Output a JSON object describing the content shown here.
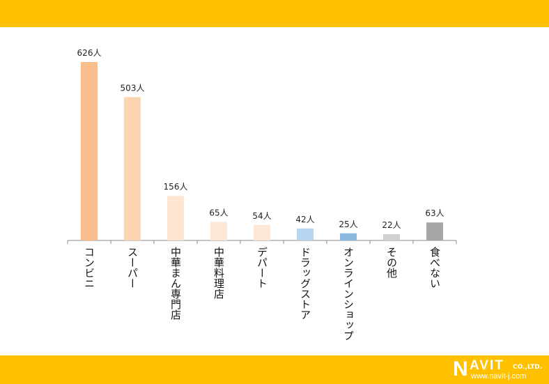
{
  "chart_data": {
    "type": "bar",
    "categories": [
      "コンビニ",
      "スーパー",
      "中華まん専門店",
      "中華料理店",
      "デパート",
      "ドラッグストア",
      "オンラインショップ",
      "その他",
      "食べない"
    ],
    "values": [
      626,
      503,
      156,
      65,
      54,
      42,
      25,
      22,
      63
    ],
    "labels": [
      "626人",
      "503人",
      "156人",
      "65人",
      "54人",
      "42人",
      "25人",
      "22人",
      "63人"
    ],
    "colors": [
      "#f9be8c",
      "#fbd5b2",
      "#fde5d0",
      "#fde8d8",
      "#fde8d8",
      "#b8d4ee",
      "#8db8e0",
      "#d0d0d0",
      "#a6a6a6"
    ],
    "title": "",
    "xlabel": "",
    "ylabel": "",
    "ylim": [
      0,
      626
    ],
    "grid": false
  },
  "brand": {
    "colors": {
      "band": "#ffc000"
    },
    "logo_text": "NAVIT CO.,LTD.",
    "url": "www.navit-j.com"
  }
}
